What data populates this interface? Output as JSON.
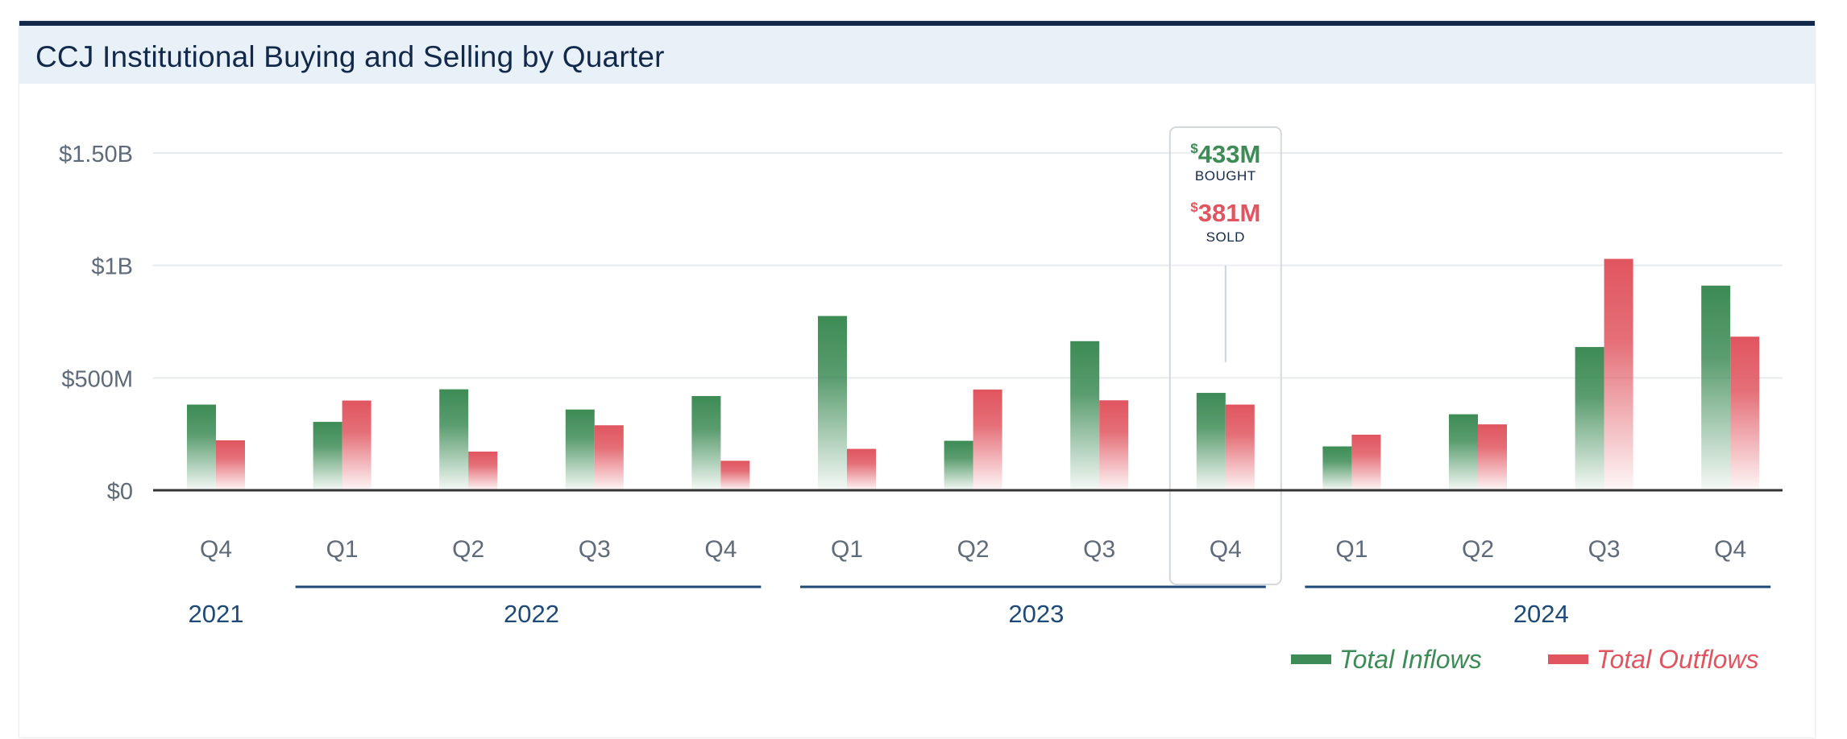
{
  "title": "CCJ Institutional Buying and Selling by Quarter",
  "colors": {
    "inflow": "#3d8b55",
    "outflow": "#e0555f",
    "header_bg": "#e8f0f8",
    "title": "#13294b",
    "year_label": "#1d4a78",
    "axis": "#333333"
  },
  "chart_data": {
    "type": "bar",
    "categories": [
      "Q4",
      "Q1",
      "Q2",
      "Q3",
      "Q4",
      "Q1",
      "Q2",
      "Q3",
      "Q4",
      "Q1",
      "Q2",
      "Q3",
      "Q4"
    ],
    "year_groups": [
      {
        "label": "2021",
        "start": 0,
        "end": 0
      },
      {
        "label": "2022",
        "start": 1,
        "end": 4
      },
      {
        "label": "2023",
        "start": 5,
        "end": 8
      },
      {
        "label": "2024",
        "start": 9,
        "end": 12
      }
    ],
    "series": [
      {
        "name": "Total Inflows",
        "color": "#3d8b55",
        "values": [
          381,
          304,
          449,
          359,
          419,
          775,
          220,
          663,
          433,
          195,
          338,
          637,
          910
        ]
      },
      {
        "name": "Total Outflows",
        "color": "#e0555f",
        "values": [
          222,
          399,
          172,
          289,
          131,
          184,
          448,
          400,
          381,
          247,
          293,
          1029,
          683
        ]
      }
    ],
    "unit": "millions USD",
    "ylim": [
      0,
      1500
    ],
    "yticks": [
      {
        "value": 0,
        "label": "$0"
      },
      {
        "value": 500,
        "label": "$500M"
      },
      {
        "value": 1000,
        "label": "$1B"
      },
      {
        "value": 1500,
        "label": "$1.50B"
      }
    ],
    "grid": true,
    "legend_position": "bottom-right",
    "highlighted_index": 8,
    "tooltip": {
      "currency": "$",
      "bought_value": "433M",
      "bought_label": "BOUGHT",
      "sold_value": "381M",
      "sold_label": "SOLD"
    }
  }
}
